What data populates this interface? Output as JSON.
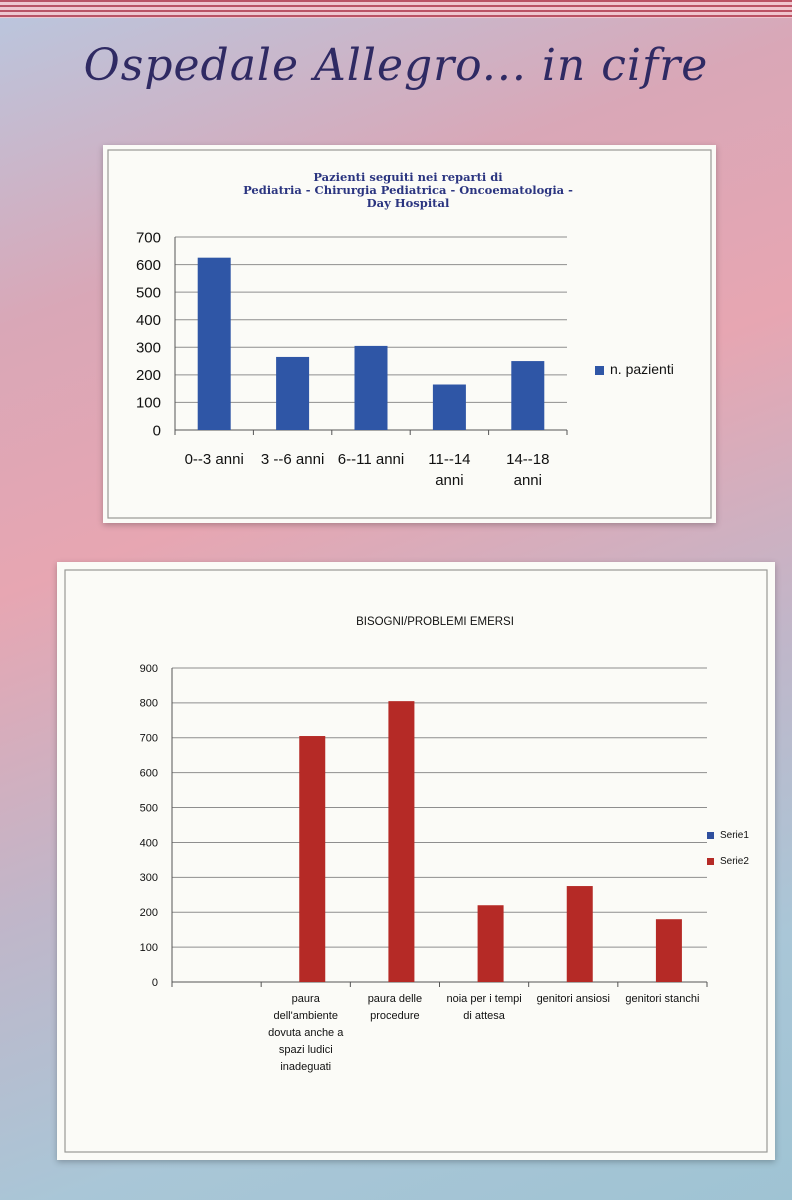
{
  "page_title": "Ospedale Allegro... in cifre",
  "chart_data": [
    {
      "type": "bar",
      "title": [
        "Pazienti seguiti nei reparti di",
        "Pediatria  -  Chirurgia Pediatrica  -  Oncoematologia  -",
        "Day Hospital"
      ],
      "categories": [
        [
          "0--3 anni"
        ],
        [
          "3  --6 anni"
        ],
        [
          "6--11 anni"
        ],
        [
          "11--14",
          "anni"
        ],
        [
          "14--18",
          "anni"
        ]
      ],
      "series": [
        {
          "name": "n. pazienti",
          "color": "#2f56a6",
          "values": [
            625,
            265,
            305,
            165,
            250
          ]
        }
      ],
      "ylim": [
        0,
        700
      ],
      "yticks": [
        0,
        100,
        200,
        300,
        400,
        500,
        600,
        700
      ],
      "grid": true,
      "legend": "right"
    },
    {
      "type": "bar",
      "title": [
        "BISOGNI/PROBLEMI EMERSI"
      ],
      "categories": [
        [],
        [
          "paura",
          "dell'ambiente",
          "dovuta anche a",
          "spazi ludici",
          "inadeguati"
        ],
        [
          "paura delle",
          "procedure"
        ],
        [
          "noia per i tempi",
          "di attesa"
        ],
        [
          "genitori ansiosi"
        ],
        [
          "genitori stanchi"
        ]
      ],
      "series": [
        {
          "name": "Serie1",
          "color": "#2f4f9e",
          "values": [
            0,
            0,
            0,
            0,
            0,
            0
          ]
        },
        {
          "name": "Serie2",
          "color": "#b52a26",
          "values": [
            0,
            705,
            805,
            220,
            275,
            180
          ]
        }
      ],
      "ylim": [
        0,
        900
      ],
      "yticks": [
        0,
        100,
        200,
        300,
        400,
        500,
        600,
        700,
        800,
        900
      ],
      "grid": true,
      "legend": "right"
    }
  ]
}
